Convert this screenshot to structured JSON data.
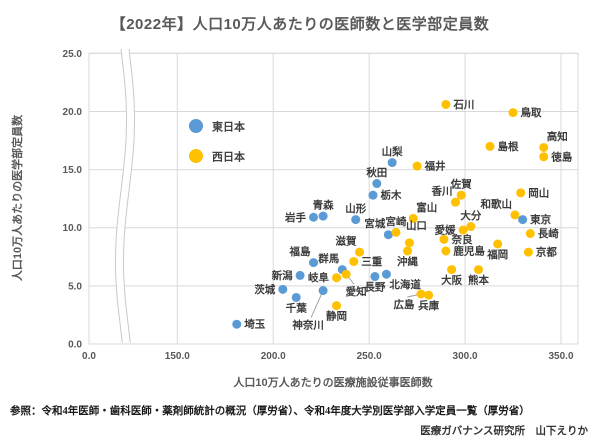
{
  "title": "【2022年】人口10万人あたりの医師数と医学部定員数",
  "footer": {
    "source": "参照：令和4年医師・歯科医師・薬剤師統計の概況（厚労省）、令和4年度大学別医学部入学定員一覧（厚労省）",
    "credit": "医療ガバナンス研究所　山下えりか"
  },
  "chart_data": {
    "type": "scatter",
    "xlabel": "人口10万人あたりの医療施設従事医師数",
    "ylabel": "人口10万人あたりの医学部定員数",
    "xlim": [
      0,
      350
    ],
    "ylim": [
      0,
      25
    ],
    "x_axis_break_between": [
      0,
      150
    ],
    "grid": true,
    "legend_position": "upper-left-inside",
    "x_ticks": [
      0,
      150,
      200,
      250,
      300,
      350
    ],
    "x_tick_labels": [
      "0.0",
      "150.0",
      "200.0",
      "250.0",
      "300.0",
      "350.0"
    ],
    "y_ticks": [
      0,
      5,
      10,
      15,
      20,
      25
    ],
    "y_tick_labels": [
      "0.0",
      "5.0",
      "10.0",
      "15.0",
      "20.0",
      "25.0"
    ],
    "series": [
      {
        "name": "東日本",
        "color": "#5B9BD5",
        "points": [
          {
            "label": "北海道",
            "x": 259,
            "y": 6.0,
            "lp": "br"
          },
          {
            "label": "青森",
            "x": 226,
            "y": 11.0,
            "lp": "a"
          },
          {
            "label": "岩手",
            "x": 221,
            "y": 10.9,
            "lp": "l"
          },
          {
            "label": "宮城",
            "x": 260,
            "y": 9.4,
            "lp": "al"
          },
          {
            "label": "秋田",
            "x": 254,
            "y": 13.8,
            "lp": "a"
          },
          {
            "label": "山形",
            "x": 243,
            "y": 10.7,
            "lp": "a"
          },
          {
            "label": "福島",
            "x": 221,
            "y": 7.0,
            "lp": "al"
          },
          {
            "label": "茨城",
            "x": 205,
            "y": 4.7,
            "lp": "l"
          },
          {
            "label": "栃木",
            "x": 252,
            "y": 12.8,
            "lp": "r"
          },
          {
            "label": "群馬",
            "x": 236,
            "y": 6.4,
            "lp": "al"
          },
          {
            "label": "埼玉",
            "x": 181,
            "y": 1.7,
            "lp": "r"
          },
          {
            "label": "千葉",
            "x": 212,
            "y": 4.0,
            "lp": "b"
          },
          {
            "label": "東京",
            "x": 330,
            "y": 10.7,
            "lp": "r"
          },
          {
            "label": "神奈川",
            "x": 226,
            "y": 4.6,
            "lp": "c",
            "ldx": -15,
            "ldy": 38,
            "leader": true
          },
          {
            "label": "新潟",
            "x": 214,
            "y": 5.9,
            "lp": "l"
          },
          {
            "label": "山梨",
            "x": 262,
            "y": 15.6,
            "lp": "a"
          },
          {
            "label": "長野",
            "x": 253,
            "y": 5.8,
            "lp": "b"
          }
        ]
      },
      {
        "name": "西日本",
        "color": "#FFC000",
        "points": [
          {
            "label": "富山",
            "x": 273,
            "y": 10.8,
            "lp": "ar"
          },
          {
            "label": "石川",
            "x": 290,
            "y": 20.6,
            "lp": "r"
          },
          {
            "label": "福井",
            "x": 275,
            "y": 15.3,
            "lp": "r"
          },
          {
            "label": "岐阜",
            "x": 233,
            "y": 5.7,
            "lp": "l"
          },
          {
            "label": "静岡",
            "x": 233,
            "y": 3.3,
            "lp": "b"
          },
          {
            "label": "愛知",
            "x": 238,
            "y": 6.0,
            "lp": "c",
            "ldx": 10,
            "ldy": 21,
            "leader": true
          },
          {
            "label": "三重",
            "x": 242,
            "y": 7.1,
            "lp": "r"
          },
          {
            "label": "滋賀",
            "x": 245,
            "y": 7.9,
            "lp": "al"
          },
          {
            "label": "京都",
            "x": 333,
            "y": 7.9,
            "lp": "r"
          },
          {
            "label": "大阪",
            "x": 293,
            "y": 6.4,
            "lp": "b"
          },
          {
            "label": "兵庫",
            "x": 281,
            "y": 4.2,
            "lp": "b"
          },
          {
            "label": "奈良",
            "x": 289,
            "y": 9.0,
            "lp": "r"
          },
          {
            "label": "和歌山",
            "x": 326,
            "y": 11.1,
            "lp": "al"
          },
          {
            "label": "鳥取",
            "x": 325,
            "y": 19.9,
            "lp": "r"
          },
          {
            "label": "島根",
            "x": 313,
            "y": 17.0,
            "lp": "r"
          },
          {
            "label": "岡山",
            "x": 329,
            "y": 13.0,
            "lp": "r"
          },
          {
            "label": "広島",
            "x": 277,
            "y": 4.3,
            "lp": "c",
            "ldx": -17,
            "ldy": 14,
            "leader": true
          },
          {
            "label": "山口",
            "x": 271,
            "y": 8.7,
            "lp": "c",
            "ldx": 7,
            "ldy": -14
          },
          {
            "label": "徳島",
            "x": 341,
            "y": 16.1,
            "lp": "r"
          },
          {
            "label": "香川",
            "x": 295,
            "y": 12.2,
            "lp": "al"
          },
          {
            "label": "愛媛",
            "x": 299,
            "y": 9.8,
            "lp": "l"
          },
          {
            "label": "高知",
            "x": 341,
            "y": 16.9,
            "lp": "ar"
          },
          {
            "label": "福岡",
            "x": 317,
            "y": 8.6,
            "lp": "b"
          },
          {
            "label": "佐賀",
            "x": 298,
            "y": 12.8,
            "lp": "a"
          },
          {
            "label": "長崎",
            "x": 334,
            "y": 9.5,
            "lp": "r"
          },
          {
            "label": "熊本",
            "x": 307,
            "y": 6.4,
            "lp": "b"
          },
          {
            "label": "大分",
            "x": 303,
            "y": 10.1,
            "lp": "a"
          },
          {
            "label": "宮崎",
            "x": 264,
            "y": 9.6,
            "lp": "a"
          },
          {
            "label": "鹿児島",
            "x": 290,
            "y": 8.0,
            "lp": "r"
          },
          {
            "label": "沖縄",
            "x": 270,
            "y": 8.0,
            "lp": "b"
          }
        ]
      }
    ]
  }
}
